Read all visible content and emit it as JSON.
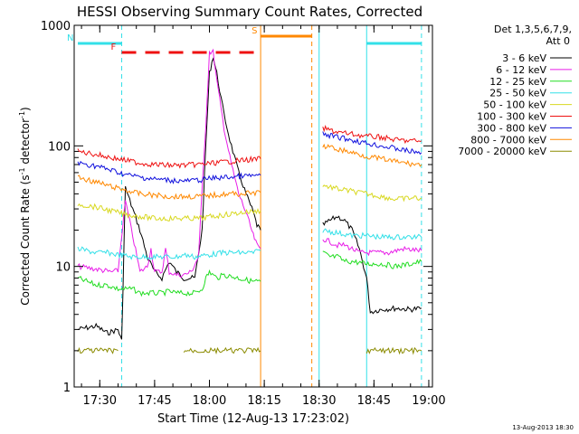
{
  "chart_data": {
    "type": "line",
    "title": "HESSI Observing Summary Count Rates, Corrected",
    "xlabel": "Start Time (12-Aug-13 17:23:02)",
    "ylabel_main": "Corrected Count Rate (s",
    "ylabel_sup1": "-1",
    "ylabel_mid": " detector",
    "ylabel_sup2": "-1",
    "ylabel_end": ")",
    "y_scale": "log",
    "ylim": [
      1,
      1000
    ],
    "xlim_minutes": [
      0,
      98
    ],
    "x_tick_minutes": [
      7,
      22,
      37,
      52,
      67,
      82,
      97
    ],
    "x_tick_labels": [
      "17:30",
      "17:45",
      "18:00",
      "18:15",
      "18:30",
      "18:45",
      "19:00"
    ],
    "y_ticks": [
      1,
      10,
      100,
      1000
    ],
    "y_tick_labels": [
      "1",
      "10",
      "100",
      "1000"
    ],
    "legend_title": "Det 1,3,5,6,7,9,",
    "legend_subtitle": "Att 0",
    "timestamp": "13-Aug-2013 18:30",
    "colors": {
      "3 - 6 keV": "#000000",
      "6 - 12 keV": "#e81ee8",
      "12 - 25 keV": "#22dd22",
      "25 - 50 keV": "#33e0e8",
      "50 - 100 keV": "#d8d820",
      "100 - 300 keV": "#ee1111",
      "300 - 800 keV": "#1010dd",
      "800 - 7000 keV": "#ff8800",
      "7000 - 20000 keV": "#8b8b00"
    },
    "series": [
      {
        "name": "3 - 6 keV",
        "segments": [
          [
            [
              1,
              3.0
            ],
            [
              6,
              3.2
            ],
            [
              9,
              2.8
            ],
            [
              12,
              3.0
            ],
            [
              13,
              2.4
            ],
            [
              14,
              45
            ],
            [
              16,
              30
            ],
            [
              18,
              20
            ],
            [
              20,
              12
            ],
            [
              22,
              9
            ],
            [
              24,
              8
            ],
            [
              26,
              11
            ],
            [
              28,
              9
            ],
            [
              30,
              8
            ],
            [
              33,
              8
            ],
            [
              35,
              20
            ],
            [
              36,
              100
            ],
            [
              37,
              400
            ],
            [
              38,
              550
            ],
            [
              39,
              400
            ],
            [
              41,
              180
            ],
            [
              43,
              100
            ],
            [
              45,
              60
            ],
            [
              47,
              40
            ],
            [
              49,
              28
            ],
            [
              50,
              22
            ],
            [
              51,
              20
            ]
          ],
          [
            [
              68,
              22
            ],
            [
              70,
              24
            ],
            [
              72,
              26
            ],
            [
              74,
              24
            ],
            [
              76,
              20
            ],
            [
              78,
              14
            ],
            [
              80,
              8
            ],
            [
              81,
              4.2
            ],
            [
              84,
              4.4
            ],
            [
              88,
              4.5
            ],
            [
              92,
              4.4
            ],
            [
              95,
              4.5
            ]
          ]
        ]
      },
      {
        "name": "6 - 12 keV",
        "segments": [
          [
            [
              1,
              10
            ],
            [
              6,
              9.5
            ],
            [
              10,
              9
            ],
            [
              12,
              9.2
            ],
            [
              14,
              35
            ],
            [
              16,
              18
            ],
            [
              18,
              9
            ],
            [
              20,
              10
            ],
            [
              21,
              14
            ],
            [
              22,
              9
            ],
            [
              24,
              9
            ],
            [
              25,
              14
            ],
            [
              26,
              9
            ],
            [
              28,
              8.5
            ],
            [
              30,
              8.5
            ],
            [
              32,
              9
            ],
            [
              34,
              12
            ],
            [
              36,
              150
            ],
            [
              37,
              600
            ],
            [
              38,
              600
            ],
            [
              39,
              350
            ],
            [
              41,
              140
            ],
            [
              43,
              70
            ],
            [
              45,
              40
            ],
            [
              47,
              28
            ],
            [
              49,
              18
            ],
            [
              50,
              15
            ],
            [
              51,
              14
            ]
          ],
          [
            [
              68,
              17
            ],
            [
              70,
              16
            ],
            [
              72,
              15
            ],
            [
              74,
              15
            ],
            [
              76,
              14
            ],
            [
              78,
              13
            ],
            [
              82,
              13
            ],
            [
              86,
              13
            ],
            [
              90,
              14
            ],
            [
              95,
              13.5
            ]
          ]
        ]
      },
      {
        "name": "12 - 25 keV",
        "segments": [
          [
            [
              1,
              8
            ],
            [
              6,
              7
            ],
            [
              9,
              7
            ],
            [
              12,
              6.5
            ],
            [
              14,
              6.5
            ],
            [
              16,
              6.5
            ],
            [
              18,
              6
            ],
            [
              20,
              6
            ],
            [
              22,
              6
            ],
            [
              24,
              6
            ],
            [
              26,
              6.2
            ],
            [
              28,
              6
            ],
            [
              30,
              6
            ],
            [
              33,
              6
            ],
            [
              35,
              6.5
            ],
            [
              36,
              8
            ],
            [
              37,
              9
            ],
            [
              39,
              8
            ],
            [
              41,
              8.5
            ],
            [
              45,
              8
            ],
            [
              49,
              7.5
            ],
            [
              51,
              7.5
            ]
          ],
          [
            [
              68,
              13
            ],
            [
              70,
              12
            ],
            [
              72,
              12
            ],
            [
              74,
              11
            ],
            [
              76,
              11
            ],
            [
              80,
              10.5
            ],
            [
              84,
              10.5
            ],
            [
              88,
              10
            ],
            [
              92,
              10.5
            ],
            [
              95,
              11
            ]
          ]
        ]
      },
      {
        "name": "25 - 50 keV",
        "segments": [
          [
            [
              1,
              14
            ],
            [
              6,
              13
            ],
            [
              9,
              13
            ],
            [
              12,
              12.5
            ],
            [
              16,
              12
            ],
            [
              20,
              12
            ],
            [
              24,
              12
            ],
            [
              28,
              12
            ],
            [
              30,
              12.5
            ],
            [
              33,
              12
            ],
            [
              37,
              12.5
            ],
            [
              41,
              13
            ],
            [
              45,
              13
            ],
            [
              49,
              13
            ],
            [
              51,
              13.5
            ]
          ],
          [
            [
              68,
              20
            ],
            [
              72,
              19
            ],
            [
              76,
              18
            ],
            [
              80,
              18
            ],
            [
              84,
              17.5
            ],
            [
              88,
              17.5
            ],
            [
              92,
              17.5
            ],
            [
              95,
              17.5
            ]
          ]
        ]
      },
      {
        "name": "50 - 100 keV",
        "segments": [
          [
            [
              1,
              33
            ],
            [
              6,
              31
            ],
            [
              10,
              29
            ],
            [
              14,
              27
            ],
            [
              18,
              26
            ],
            [
              22,
              25
            ],
            [
              26,
              25
            ],
            [
              30,
              25
            ],
            [
              34,
              25
            ],
            [
              38,
              26
            ],
            [
              42,
              27
            ],
            [
              46,
              28
            ],
            [
              51,
              29
            ]
          ],
          [
            [
              68,
              47
            ],
            [
              72,
              44
            ],
            [
              76,
              42
            ],
            [
              80,
              40
            ],
            [
              84,
              38
            ],
            [
              88,
              36
            ],
            [
              92,
              37
            ],
            [
              95,
              37
            ]
          ]
        ]
      },
      {
        "name": "100 - 300 keV",
        "segments": [
          [
            [
              1,
              90
            ],
            [
              6,
              85
            ],
            [
              10,
              80
            ],
            [
              14,
              76
            ],
            [
              18,
              72
            ],
            [
              22,
              70
            ],
            [
              26,
              69
            ],
            [
              30,
              69
            ],
            [
              34,
              70
            ],
            [
              38,
              72
            ],
            [
              42,
              74
            ],
            [
              46,
              76
            ],
            [
              51,
              78
            ]
          ],
          [
            [
              68,
              140
            ],
            [
              72,
              130
            ],
            [
              76,
              125
            ],
            [
              80,
              120
            ],
            [
              84,
              118
            ],
            [
              88,
              112
            ],
            [
              92,
              110
            ],
            [
              95,
              110
            ]
          ]
        ]
      },
      {
        "name": "300 - 800 keV",
        "segments": [
          [
            [
              1,
              72
            ],
            [
              6,
              68
            ],
            [
              10,
              63
            ],
            [
              14,
              58
            ],
            [
              18,
              55
            ],
            [
              22,
              53
            ],
            [
              26,
              52
            ],
            [
              30,
              51
            ],
            [
              34,
              52
            ],
            [
              38,
              54
            ],
            [
              42,
              55
            ],
            [
              46,
              56
            ],
            [
              51,
              57
            ]
          ],
          [
            [
              68,
              125
            ],
            [
              72,
              118
            ],
            [
              76,
              112
            ],
            [
              80,
              105
            ],
            [
              84,
              100
            ],
            [
              88,
              95
            ],
            [
              92,
              90
            ],
            [
              95,
              88
            ]
          ]
        ]
      },
      {
        "name": "800 - 7000 keV",
        "segments": [
          [
            [
              1,
              55
            ],
            [
              6,
              50
            ],
            [
              10,
              46
            ],
            [
              14,
              43
            ],
            [
              18,
              40
            ],
            [
              22,
              39
            ],
            [
              26,
              38
            ],
            [
              30,
              38
            ],
            [
              34,
              38
            ],
            [
              38,
              39
            ],
            [
              42,
              40
            ],
            [
              46,
              40
            ],
            [
              51,
              41
            ]
          ],
          [
            [
              68,
              100
            ],
            [
              72,
              94
            ],
            [
              76,
              88
            ],
            [
              80,
              82
            ],
            [
              84,
              78
            ],
            [
              88,
              74
            ],
            [
              92,
              71
            ],
            [
              95,
              70
            ]
          ]
        ]
      },
      {
        "name": "7000 - 20000 keV",
        "segments": [
          [
            [
              1,
              2.0
            ],
            [
              12,
              2.0
            ]
          ],
          [
            [
              30,
              2.0
            ],
            [
              51,
              2.0
            ]
          ],
          [
            [
              80,
              2.0
            ],
            [
              95,
              2.0
            ]
          ]
        ]
      }
    ],
    "flags": [
      {
        "label": "N",
        "color": "#33e0e8",
        "segments": [
          [
            [
              1,
              13
            ]
          ],
          [
            [
              80,
              95
            ]
          ]
        ]
      },
      {
        "label": "F",
        "color": "#ee1111",
        "segments": [
          [
            [
              13,
              51
            ]
          ]
        ]
      },
      {
        "label": "S",
        "color": "#ff8800",
        "segments": [
          [
            [
              51,
              65
            ]
          ]
        ]
      }
    ],
    "vlines": [
      {
        "t": 13,
        "color": "#33e0e8",
        "style": "dashed"
      },
      {
        "t": 51,
        "color": "#ff8800",
        "style": "solid"
      },
      {
        "t": 65,
        "color": "#ff8800",
        "style": "dashed"
      },
      {
        "t": 67,
        "color": "#33e0e8",
        "style": "solid"
      },
      {
        "t": 80,
        "color": "#33e0e8",
        "style": "solid"
      },
      {
        "t": 95,
        "color": "#33e0e8",
        "style": "dashed"
      }
    ]
  }
}
